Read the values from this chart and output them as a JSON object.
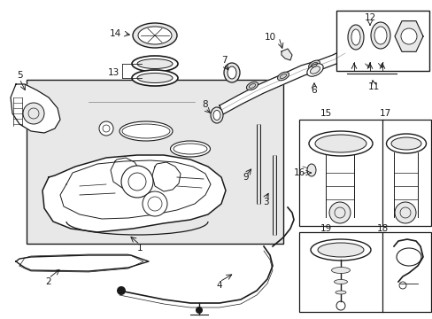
{
  "bg_color": "#ffffff",
  "line_color": "#1a1a1a",
  "gray_fill": "#e8e8e8",
  "light_fill": "#f0f0f0",
  "figsize": [
    4.89,
    3.6
  ],
  "dpi": 100,
  "xlim": [
    0,
    489
  ],
  "ylim": [
    0,
    360
  ]
}
